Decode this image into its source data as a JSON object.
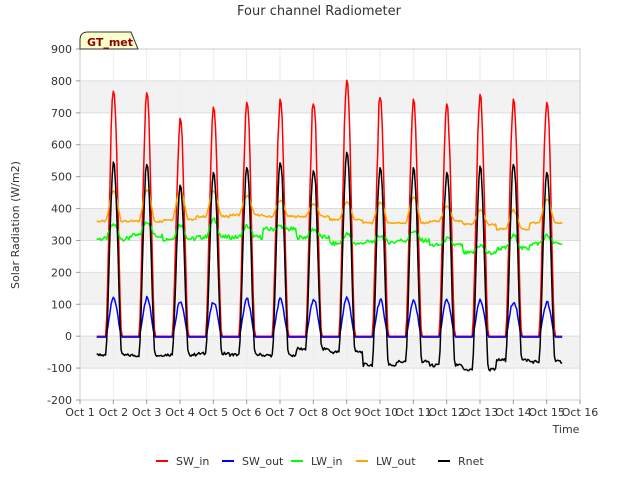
{
  "chart_data": {
    "type": "line",
    "title": "Four channel Radiometer",
    "xlabel": "Time",
    "ylabel": "Solar Radiation (W/m2)",
    "site_badge": "GT_met",
    "xlim": [
      1,
      16
    ],
    "ylim": [
      -200,
      900
    ],
    "x_ticks": [
      {
        "v": 1,
        "label": "Oct 1"
      },
      {
        "v": 2,
        "label": "Oct 2"
      },
      {
        "v": 3,
        "label": "Oct 3"
      },
      {
        "v": 4,
        "label": "Oct 4"
      },
      {
        "v": 5,
        "label": "Oct 5"
      },
      {
        "v": 6,
        "label": "Oct 6"
      },
      {
        "v": 7,
        "label": "Oct 7"
      },
      {
        "v": 8,
        "label": "Oct 8"
      },
      {
        "v": 9,
        "label": "Oct 9"
      },
      {
        "v": 10,
        "label": "Oct 10"
      },
      {
        "v": 11,
        "label": "Oct 11"
      },
      {
        "v": 12,
        "label": "Oct 12"
      },
      {
        "v": 13,
        "label": "Oct 13"
      },
      {
        "v": 14,
        "label": "Oct 14"
      },
      {
        "v": 15,
        "label": "Oct 15"
      },
      {
        "v": 16,
        "label": "Oct 16"
      }
    ],
    "y_ticks": [
      -200,
      -100,
      0,
      100,
      200,
      300,
      400,
      500,
      600,
      700,
      800,
      900
    ],
    "band_ranges": [
      [
        -100,
        0
      ],
      [
        100,
        200
      ],
      [
        300,
        400
      ],
      [
        500,
        600
      ],
      [
        700,
        800
      ]
    ],
    "daily": {
      "days": [
        1,
        2,
        3,
        4,
        5,
        6,
        7,
        8,
        9,
        10,
        11,
        12,
        13,
        14
      ],
      "sw_in_peak": [
        770,
        765,
        685,
        720,
        735,
        745,
        730,
        805,
        750,
        745,
        730,
        760,
        745,
        735
      ],
      "sw_out_peak": [
        120,
        120,
        112,
        110,
        115,
        115,
        115,
        120,
        112,
        108,
        112,
        112,
        110,
        105
      ],
      "lw_in_day": [
        350,
        360,
        350,
        365,
        345,
        345,
        335,
        320,
        315,
        330,
        305,
        285,
        315,
        315
      ],
      "lw_in_night": [
        305,
        315,
        305,
        310,
        310,
        335,
        310,
        290,
        295,
        300,
        285,
        260,
        275,
        290
      ],
      "lw_out_day": [
        455,
        460,
        460,
        455,
        440,
        425,
        415,
        420,
        420,
        435,
        405,
        395,
        395,
        430
      ],
      "lw_out_night": [
        360,
        360,
        365,
        375,
        380,
        375,
        375,
        365,
        355,
        355,
        360,
        350,
        335,
        355
      ],
      "rnet_peak": [
        548,
        540,
        475,
        515,
        530,
        545,
        520,
        578,
        530,
        530,
        515,
        535,
        540,
        515
      ],
      "rnet_night": [
        -60,
        -60,
        -58,
        -55,
        -58,
        -60,
        -40,
        -50,
        -90,
        -80,
        -92,
        -105,
        -75,
        -80
      ]
    },
    "series": [
      {
        "name": "SW_in",
        "color": "#ff0000"
      },
      {
        "name": "SW_out",
        "color": "#0000ff"
      },
      {
        "name": "LW_in",
        "color": "#00ff00"
      },
      {
        "name": "LW_out",
        "color": "#ffa500"
      },
      {
        "name": "Rnet",
        "color": "#000000"
      }
    ]
  }
}
